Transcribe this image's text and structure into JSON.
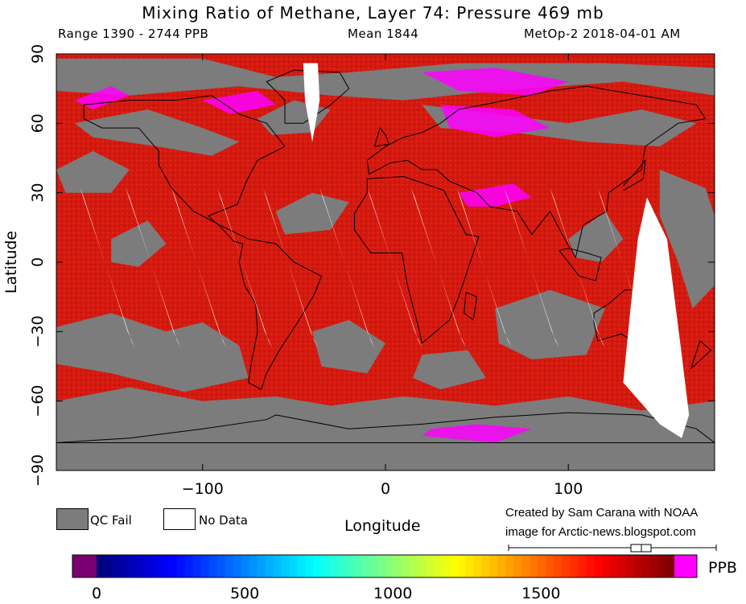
{
  "header": {
    "title": "Mixing Ratio of Methane, Layer 74: Pressure 469 mb",
    "range": "Range 1390 - 2744 PPB",
    "mean": "Mean 1844",
    "satellite": "MetOp-2 2018-04-01 AM"
  },
  "legend": {
    "qc_fail": "QC Fail",
    "no_data": "No Data",
    "qc_fail_color": "#7c7c7c",
    "no_data_color": "#ffffff"
  },
  "credit": {
    "line1": "Created by Sam Carana with NOAA",
    "line2": "image for Arctic-news.blogspot.com"
  },
  "colorbar": {
    "unit": "PPB",
    "ticks": [
      "0",
      "500",
      "1000",
      "1500"
    ],
    "tick_values": [
      0,
      500,
      1000,
      1500
    ],
    "under_color": "#7b006f",
    "over_color": "#ff00ff"
  },
  "chart_data": {
    "type": "heatmap",
    "title": "Mixing Ratio of Methane, Layer 74: Pressure 469 mb",
    "xlabel": "Longitude",
    "ylabel": "Latitude",
    "xlim": [
      -180,
      180
    ],
    "ylim": [
      -90,
      90
    ],
    "x_ticks": [
      "−100",
      "0",
      "100"
    ],
    "x_tick_values": [
      -100,
      0,
      100
    ],
    "y_ticks": [
      "90",
      "60",
      "30",
      "0",
      "−30",
      "−60",
      "−90"
    ],
    "y_tick_values": [
      90,
      60,
      30,
      0,
      -30,
      -60,
      -90
    ],
    "value_range": [
      1390,
      2744
    ],
    "mean": 1844,
    "units": "PPB",
    "colorbar_range": [
      0,
      1950
    ],
    "dominant_value_color": "#d01010",
    "high_value_color": "#ff00ff",
    "no_data_swaths_lon_at_equator": [
      -153,
      -128,
      -103,
      -78,
      -53,
      -22,
      4,
      28,
      53,
      79,
      104,
      130
    ],
    "polar_gap_lon": -40,
    "australia_gap_lon": 140
  }
}
